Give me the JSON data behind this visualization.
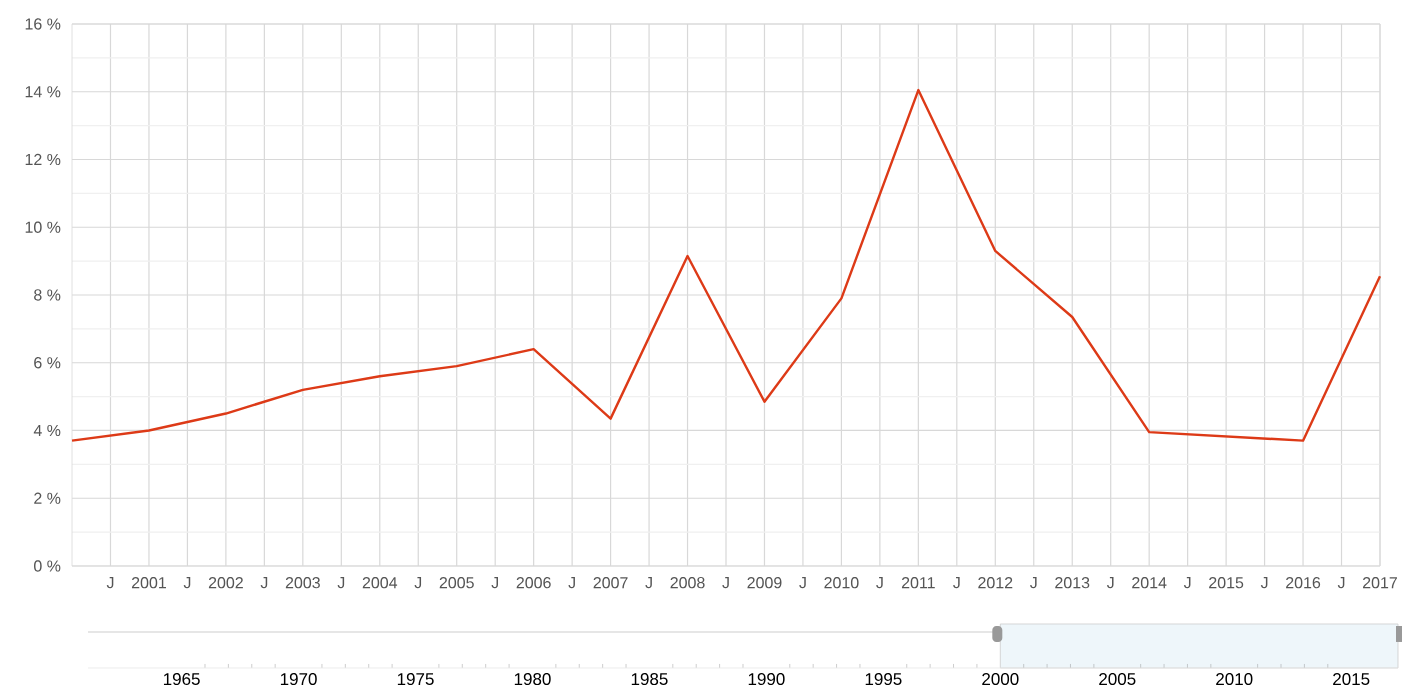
{
  "chart_data": {
    "type": "line",
    "x": [
      2000,
      2001,
      2002,
      2003,
      2004,
      2005,
      2006,
      2007,
      2008,
      2009,
      2010,
      2011,
      2012,
      2013,
      2014,
      2016,
      2017
    ],
    "series": [
      {
        "color": "#dd3a17",
        "values": [
          3.7,
          4.0,
          4.5,
          5.2,
          5.6,
          5.9,
          6.4,
          4.35,
          9.15,
          4.85,
          7.9,
          14.05,
          9.3,
          7.35,
          3.95,
          3.7,
          8.55
        ]
      }
    ],
    "xlim": [
      2000,
      2017
    ],
    "xticks": [
      {
        "value": 2000.5,
        "label": "J"
      },
      2001,
      {
        "value": 2001.5,
        "label": "J"
      },
      2002,
      {
        "value": 2002.5,
        "label": "J"
      },
      2003,
      {
        "value": 2003.5,
        "label": "J"
      },
      2004,
      {
        "value": 2004.5,
        "label": "J"
      },
      2005,
      {
        "value": 2005.5,
        "label": "J"
      },
      2006,
      {
        "value": 2006.5,
        "label": "J"
      },
      2007,
      {
        "value": 2007.5,
        "label": "J"
      },
      2008,
      {
        "value": 2008.5,
        "label": "J"
      },
      2009,
      {
        "value": 2009.5,
        "label": "J"
      },
      2010,
      {
        "value": 2010.5,
        "label": "J"
      },
      2011,
      {
        "value": 2011.5,
        "label": "J"
      },
      2012,
      {
        "value": 2012.5,
        "label": "J"
      },
      2013,
      {
        "value": 2013.5,
        "label": "J"
      },
      2014,
      {
        "value": 2014.5,
        "label": "J"
      },
      2015,
      {
        "value": 2015.5,
        "label": "J"
      },
      2016,
      {
        "value": 2016.5,
        "label": "J"
      },
      2017
    ],
    "ylim": [
      0,
      16
    ],
    "yticks": [
      {
        "value": 0,
        "label": "0 %"
      },
      {
        "value": 2,
        "label": "2 %"
      },
      {
        "value": 4,
        "label": "4 %"
      },
      {
        "value": 6,
        "label": "6 %"
      },
      {
        "value": 8,
        "label": "8 %"
      },
      {
        "value": 10,
        "label": "10 %"
      },
      {
        "value": 12,
        "label": "12 %"
      },
      {
        "value": 14,
        "label": "14 %"
      },
      {
        "value": 16,
        "label": "16 %"
      }
    ],
    "grid": true,
    "x2lim": [
      1961,
      2017
    ],
    "x2ticks": [
      1965,
      1970,
      1975,
      1980,
      1985,
      1990,
      1995,
      2000,
      2005,
      2010,
      2015
    ]
  }
}
